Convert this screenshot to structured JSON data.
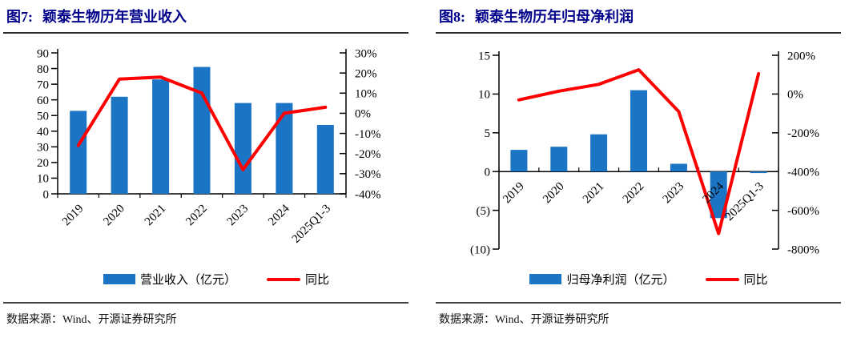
{
  "colors": {
    "bar_blue": "#1B74C4",
    "line_red": "#FE0000",
    "title_navy": "#00008B",
    "negative_tick_red": "#FF0000",
    "axis_black": "#000000",
    "rule_dark": "#2b2b2b"
  },
  "source_note": "数据来源：Wind、开源证券研究所",
  "chart_data": [
    {
      "type": "bar",
      "overlay": "line",
      "title_prefix": "图7:",
      "title": "颖泰生物历年营业收入",
      "categories": [
        "2019",
        "2020",
        "2021",
        "2022",
        "2023",
        "2024",
        "2025Q1-3"
      ],
      "series": [
        {
          "name": "营业收入（亿元）",
          "kind": "bar",
          "axis": "left",
          "values": [
            53,
            62,
            73,
            81,
            58,
            58,
            44
          ]
        },
        {
          "name": "同比",
          "kind": "line",
          "axis": "right",
          "unit": "%",
          "values": [
            -16,
            17,
            18,
            10,
            -28,
            0,
            3
          ]
        }
      ],
      "left_axis": {
        "min": 0,
        "max": 90,
        "ticks": [
          {
            "v": 90,
            "label": "90"
          },
          {
            "v": 80,
            "label": "80"
          },
          {
            "v": 70,
            "label": "70"
          },
          {
            "v": 60,
            "label": "60"
          },
          {
            "v": 50,
            "label": "50"
          },
          {
            "v": 40,
            "label": "40"
          },
          {
            "v": 30,
            "label": "30"
          },
          {
            "v": 20,
            "label": "20"
          },
          {
            "v": 10,
            "label": "10"
          },
          {
            "v": 0,
            "label": "0"
          }
        ]
      },
      "right_axis": {
        "min": -40,
        "max": 30,
        "ticks": [
          {
            "v": 30,
            "label": "30%"
          },
          {
            "v": 20,
            "label": "20%"
          },
          {
            "v": 10,
            "label": "10%"
          },
          {
            "v": 0,
            "label": "0%"
          },
          {
            "v": -10,
            "label": "-10%"
          },
          {
            "v": -20,
            "label": "-20%"
          },
          {
            "v": -30,
            "label": "-30%"
          },
          {
            "v": -40,
            "label": "-40%"
          }
        ]
      },
      "legend": [
        {
          "swatch": "bar",
          "label": "营业收入（亿元）"
        },
        {
          "swatch": "line",
          "label": "同比"
        }
      ],
      "grid": false,
      "legend_position": "bottom"
    },
    {
      "type": "bar",
      "overlay": "line",
      "title_prefix": "图8:",
      "title": "颖泰生物历年归母净利润",
      "categories": [
        "2019",
        "2020",
        "2021",
        "2022",
        "2023",
        "2024",
        "2025Q1-3"
      ],
      "series": [
        {
          "name": "归母净利润（亿元）",
          "kind": "bar",
          "axis": "left",
          "values": [
            2.8,
            3.2,
            4.8,
            10.5,
            1.0,
            -6.0,
            -0.2
          ]
        },
        {
          "name": "同比",
          "kind": "line",
          "axis": "right",
          "unit": "%",
          "values": [
            -30,
            15,
            50,
            125,
            -90,
            -720,
            105
          ]
        }
      ],
      "left_axis": {
        "min": -10,
        "max": 15,
        "ticks": [
          {
            "v": 15,
            "label": "15"
          },
          {
            "v": 10,
            "label": "10"
          },
          {
            "v": 5,
            "label": "5"
          },
          {
            "v": 0,
            "label": "0"
          },
          {
            "v": -5,
            "label": "(5)",
            "negative": true
          },
          {
            "v": -10,
            "label": "(10)",
            "negative": true
          }
        ]
      },
      "right_axis": {
        "min": -800,
        "max": 200,
        "ticks": [
          {
            "v": 200,
            "label": "200%"
          },
          {
            "v": 0,
            "label": "0%"
          },
          {
            "v": -200,
            "label": "-200%"
          },
          {
            "v": -400,
            "label": "-400%"
          },
          {
            "v": -600,
            "label": "-600%"
          },
          {
            "v": -800,
            "label": "-800%"
          }
        ]
      },
      "legend": [
        {
          "swatch": "bar",
          "label": "归母净利润（亿元）"
        },
        {
          "swatch": "line",
          "label": "同比"
        }
      ],
      "grid": false,
      "legend_position": "bottom"
    }
  ]
}
